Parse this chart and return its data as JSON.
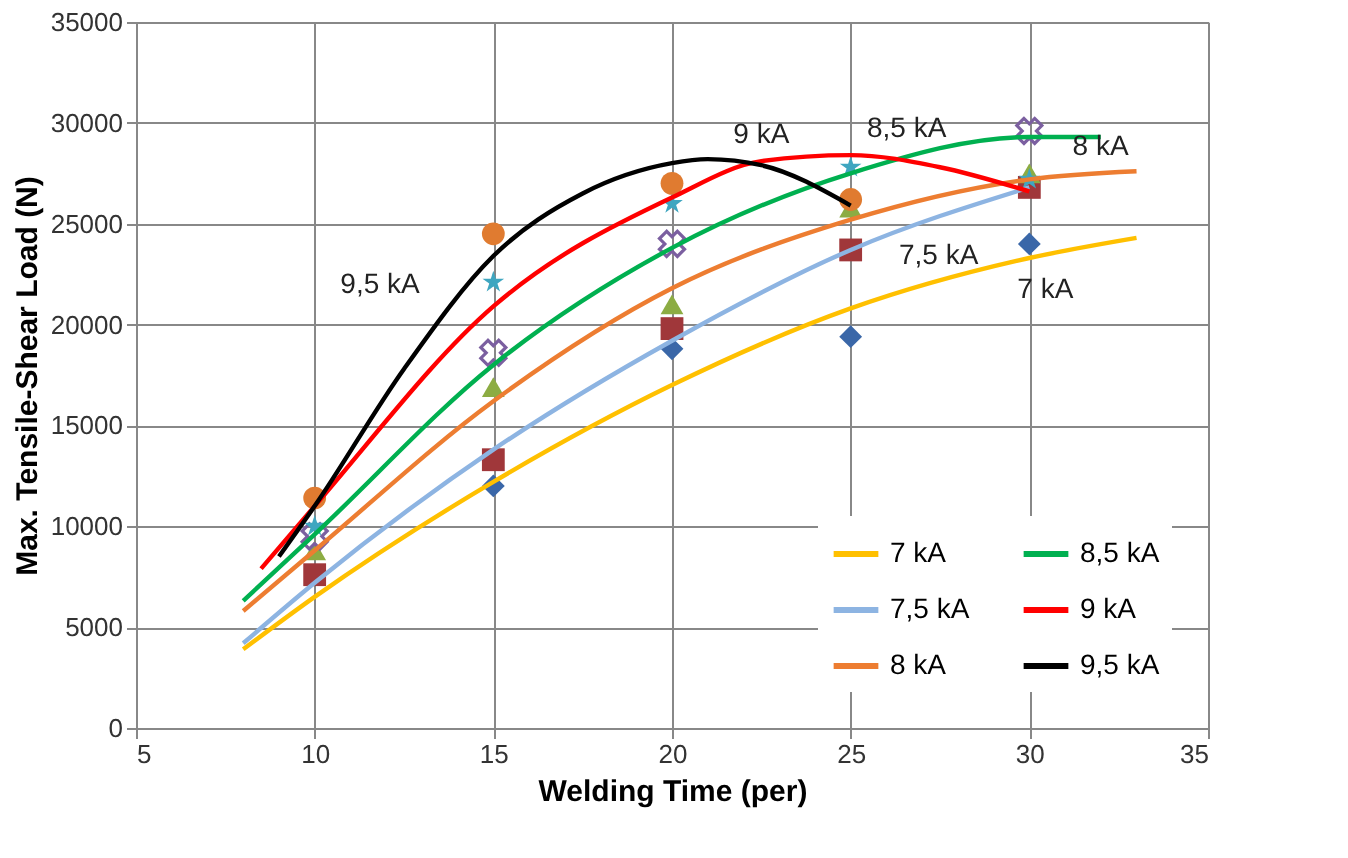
{
  "chart_data": {
    "type": "line",
    "xlabel": "Welding Time (per)",
    "ylabel": "Max. Tensile-Shear  Load (N)",
    "xlim": [
      5,
      35
    ],
    "xticks": [
      5,
      10,
      15,
      20,
      25,
      30,
      35
    ],
    "ylim": [
      0,
      35000
    ],
    "yticks": [
      0,
      5000,
      10000,
      15000,
      20000,
      25000,
      30000,
      35000
    ],
    "grid": true,
    "legend": "bottom right",
    "line_style": "solid",
    "series": [
      {
        "name": "7 kA",
        "color": "#ffc000",
        "marker": "none",
        "x": [
          8,
          10,
          15,
          20,
          25,
          30,
          33
        ],
        "values": [
          3900,
          6500,
          12200,
          17000,
          20800,
          23300,
          24300
        ]
      },
      {
        "name": "7,5 kA",
        "color": "#8db4e2",
        "marker": "none",
        "x": [
          8,
          10,
          15,
          20,
          25,
          30
        ],
        "values": [
          4200,
          7200,
          13800,
          19200,
          23700,
          26800
        ]
      },
      {
        "name": "8 kA",
        "color": "#ed7d31",
        "marker": "none",
        "x": [
          8,
          10,
          15,
          20,
          25,
          30,
          33
        ],
        "values": [
          5800,
          8800,
          16200,
          21800,
          25200,
          27200,
          27600
        ]
      },
      {
        "name": "8,5 kA",
        "color": "#00b050",
        "marker": "none",
        "x": [
          8,
          10,
          15,
          20,
          25,
          30,
          32
        ],
        "values": [
          6300,
          9600,
          18000,
          23800,
          27500,
          29300,
          29300
        ]
      },
      {
        "name": "9 kA",
        "color": "#ff0000",
        "marker": "none",
        "x": [
          8.5,
          10,
          15,
          20,
          22.5,
          25,
          27.5,
          30
        ],
        "values": [
          7900,
          11000,
          20900,
          26300,
          28100,
          28400,
          27800,
          26600
        ]
      },
      {
        "name": "9,5 kA",
        "color": "#000000",
        "marker": "none",
        "x": [
          9,
          10,
          12.5,
          15,
          17.5,
          20,
          21,
          22.5,
          25
        ],
        "values": [
          8500,
          11000,
          17800,
          23400,
          26500,
          28000,
          28200,
          27900,
          25900
        ]
      },
      {
        "color": "#3a67a8",
        "type": "scatter",
        "marker": "diamond",
        "x": [
          15,
          20,
          25,
          30
        ],
        "values": [
          12000,
          18800,
          19400,
          24000
        ]
      },
      {
        "color": "#a0373a",
        "type": "scatter",
        "marker": "square",
        "x": [
          10,
          15,
          20,
          25,
          30
        ],
        "values": [
          7600,
          13300,
          19800,
          23700,
          26800
        ]
      },
      {
        "color": "#8cac43",
        "type": "scatter",
        "marker": "triangle",
        "x": [
          10,
          15,
          20,
          25,
          30
        ],
        "values": [
          8800,
          16900,
          21000,
          25800,
          27500
        ]
      },
      {
        "color": "#7b5fa0",
        "type": "scatter",
        "marker": "cross",
        "x": [
          10,
          15,
          20,
          30
        ],
        "values": [
          9500,
          18600,
          24000,
          29600
        ]
      },
      {
        "color": "#3fa6c0",
        "type": "scatter",
        "marker": "star",
        "x": [
          10,
          15,
          20,
          25,
          30
        ],
        "values": [
          10000,
          22100,
          26000,
          27800,
          27200
        ]
      },
      {
        "color": "#e07b30",
        "type": "scatter",
        "marker": "circle",
        "x": [
          10,
          15,
          20,
          25
        ],
        "values": [
          11400,
          24500,
          27000,
          26200
        ]
      }
    ],
    "annotations": [
      {
        "text": "9,5 kA",
        "x": 12.5,
        "y": 17800
      },
      {
        "text": "9 kA",
        "x": 22.5,
        "y": 28100
      },
      {
        "text": "8,5 kA",
        "x": 25,
        "y": 27500
      },
      {
        "text": "8 kA",
        "x": 33,
        "y": 27600
      },
      {
        "text": "7,5 kA",
        "x": 25,
        "y": 23700
      },
      {
        "text": "7 kA",
        "x": 30,
        "y": 23300
      }
    ]
  }
}
